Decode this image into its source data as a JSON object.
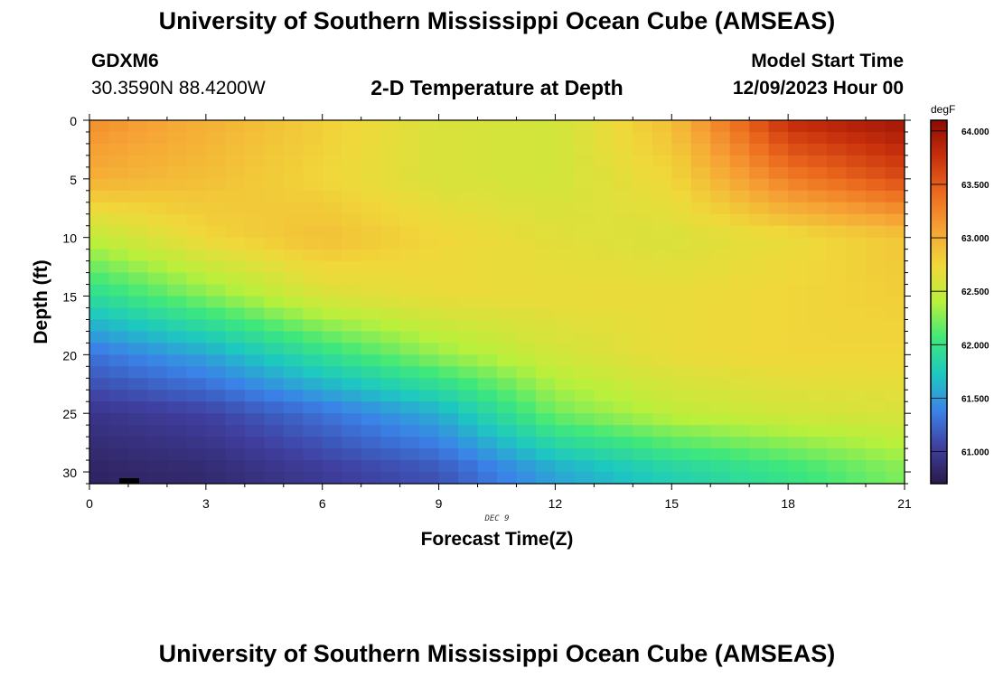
{
  "page": {
    "title_top": "University of Southern Mississippi Ocean Cube (AMSEAS)",
    "title_bottom": "University of Southern Mississippi Ocean Cube (AMSEAS)",
    "station_id": "GDXM6",
    "station_coords": "30.3590N  88.4200W",
    "subtitle": "2-D Temperature at Depth",
    "model_start_label": "Model Start Time",
    "model_start_value": "12/09/2023 Hour 00"
  },
  "chart_data": {
    "type": "heatmap",
    "title": "2-D Temperature at Depth",
    "xlabel": "Forecast Time(Z)",
    "ylabel": "Depth (ft)",
    "date_label": "DEC 9",
    "xlim": [
      0,
      21
    ],
    "ylim": [
      0,
      31
    ],
    "x_ticks": [
      0,
      3,
      6,
      9,
      12,
      15,
      18,
      21
    ],
    "y_ticks": [
      0,
      5,
      10,
      15,
      20,
      25,
      30
    ],
    "colorbar": {
      "units": "degF",
      "range": [
        60.7,
        64.1
      ],
      "ticks": [
        61.0,
        61.5,
        62.0,
        62.5,
        63.0,
        63.5,
        64.0
      ],
      "tick_labels": [
        "61.000",
        "61.500",
        "62.000",
        "62.500",
        "63.000",
        "63.500",
        "64.000"
      ],
      "colormap": [
        "#2a1a4a",
        "#3f3f9f",
        "#3b82e8",
        "#1dc8c0",
        "#3fe87a",
        "#b8f03c",
        "#f0d83a",
        "#f6a235",
        "#ec6a1e",
        "#c8300c",
        "#8c0a04"
      ]
    },
    "field_description": "Temperature (degF) vs forecast hour (x) and depth in ft (y); values sampled at control points and interpolated",
    "depth_levels": [
      0,
      5,
      10,
      15,
      20,
      25,
      30
    ],
    "time_points": [
      0,
      3,
      6,
      9,
      12,
      15,
      18,
      21
    ],
    "values": [
      [
        63.2,
        63.0,
        62.8,
        62.6,
        62.55,
        62.9,
        63.8,
        64.0
      ],
      [
        63.0,
        62.9,
        62.75,
        62.6,
        62.55,
        62.75,
        63.3,
        63.6
      ],
      [
        62.45,
        62.75,
        62.9,
        62.75,
        62.65,
        62.6,
        62.7,
        62.85
      ],
      [
        61.9,
        62.25,
        62.6,
        62.7,
        62.7,
        62.7,
        62.75,
        62.8
      ],
      [
        61.3,
        61.55,
        61.95,
        62.3,
        62.55,
        62.7,
        62.75,
        62.75
      ],
      [
        60.95,
        61.05,
        61.3,
        61.6,
        62.2,
        62.45,
        62.55,
        62.6
      ],
      [
        60.8,
        60.85,
        61.0,
        61.15,
        61.55,
        61.8,
        62.0,
        62.25
      ]
    ]
  }
}
